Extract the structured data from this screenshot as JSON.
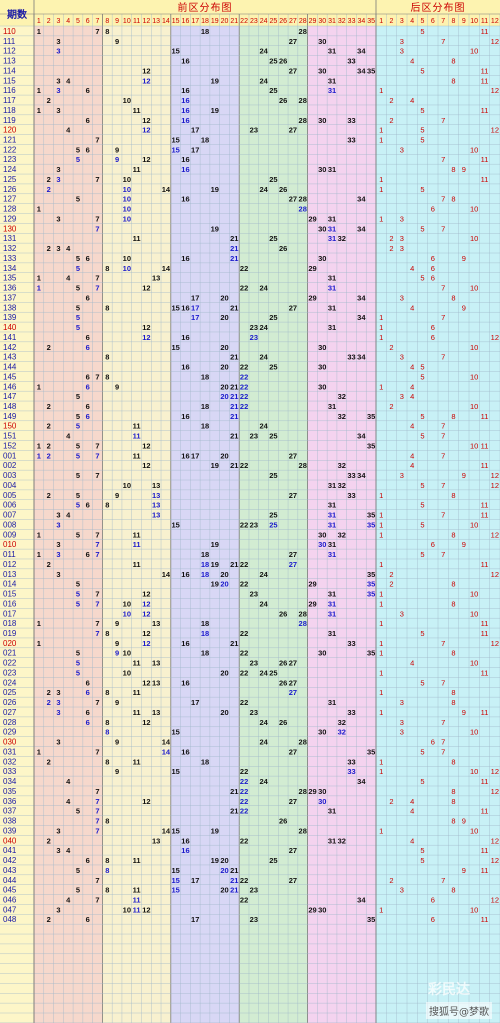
{
  "chart_data": {
    "type": "table",
    "header_label": "期数",
    "sections": [
      {
        "title": "前区分布图",
        "from": 1,
        "to": 35
      },
      {
        "title": "后区分布图",
        "from": 1,
        "to": 12
      }
    ],
    "front_groups": [
      {
        "from": 1,
        "to": 7,
        "color": "#f6d8cc"
      },
      {
        "from": 8,
        "to": 14,
        "color": "#f8f1cf"
      },
      {
        "from": 15,
        "to": 21,
        "color": "#d8d7f5"
      },
      {
        "from": 22,
        "to": 28,
        "color": "#d2ecd2"
      },
      {
        "from": 29,
        "to": 35,
        "color": "#f4d3ef"
      }
    ],
    "back_color": "#c8f1f6",
    "issue_odd_color": "#cc0000",
    "issue_even_color": "#1a1aa6",
    "repeat_color": "#1a1acc",
    "number_color": "#111111",
    "back_number_color": "#cc0000",
    "rows": [
      {
        "issue": "110",
        "front": [
          1,
          7,
          8,
          18,
          28
        ],
        "back": [
          5,
          11
        ]
      },
      {
        "issue": "111",
        "front": [
          3,
          9,
          27,
          30
        ],
        "back": [
          3,
          7,
          12
        ]
      },
      {
        "issue": "112",
        "front": [
          3,
          15,
          24,
          31,
          34
        ],
        "back": [
          3,
          10
        ]
      },
      {
        "issue": "113",
        "front": [
          16,
          25,
          26,
          33
        ],
        "back": [
          4,
          8
        ]
      },
      {
        "issue": "114",
        "front": [
          12,
          27,
          30,
          34,
          35
        ],
        "back": [
          5,
          11
        ]
      },
      {
        "issue": "115",
        "front": [
          3,
          4,
          12,
          19,
          24,
          31
        ],
        "back": [
          8,
          11
        ]
      },
      {
        "issue": "116",
        "front": [
          1,
          3,
          6,
          16,
          25,
          31
        ],
        "back": [
          1,
          12
        ]
      },
      {
        "issue": "117",
        "front": [
          2,
          10,
          16,
          26,
          28
        ],
        "back": [
          2,
          4
        ]
      },
      {
        "issue": "118",
        "front": [
          1,
          3,
          11,
          16,
          19
        ],
        "back": [
          5,
          11
        ]
      },
      {
        "issue": "119",
        "front": [
          6,
          12,
          16,
          28,
          30,
          33
        ],
        "back": [
          2,
          7
        ]
      },
      {
        "issue": "120",
        "front": [
          4,
          12,
          17,
          23,
          27
        ],
        "back": [
          1,
          5,
          12
        ]
      },
      {
        "issue": "121",
        "front": [
          7,
          15,
          18,
          33
        ],
        "back": [
          1,
          5
        ]
      },
      {
        "issue": "122",
        "front": [
          5,
          6,
          9,
          15,
          17
        ],
        "back": [
          3,
          10
        ]
      },
      {
        "issue": "123",
        "front": [
          5,
          9,
          12,
          16
        ],
        "back": [
          7,
          11
        ]
      },
      {
        "issue": "124",
        "front": [
          3,
          11,
          16,
          30,
          31
        ],
        "back": [
          8,
          9
        ]
      },
      {
        "issue": "125",
        "front": [
          2,
          3,
          7,
          10,
          25
        ],
        "back": [
          1,
          11
        ]
      },
      {
        "issue": "126",
        "front": [
          2,
          10,
          14,
          19,
          24,
          26
        ],
        "back": [
          1,
          5
        ]
      },
      {
        "issue": "127",
        "front": [
          5,
          10,
          16,
          27,
          28,
          34
        ],
        "back": [
          7,
          8
        ]
      },
      {
        "issue": "128",
        "front": [
          1,
          10,
          28
        ],
        "back": [
          6,
          10
        ]
      },
      {
        "issue": "129",
        "front": [
          3,
          7,
          10,
          29,
          31
        ],
        "back": [
          1,
          3
        ]
      },
      {
        "issue": "130",
        "front": [
          7,
          19,
          30,
          31,
          34
        ],
        "back": [
          5,
          7
        ]
      },
      {
        "issue": "131",
        "front": [
          11,
          21,
          25,
          31,
          32
        ],
        "back": [
          2,
          3,
          10
        ]
      },
      {
        "issue": "132",
        "front": [
          2,
          3,
          4,
          21,
          26
        ],
        "back": [
          2,
          3
        ]
      },
      {
        "issue": "133",
        "front": [
          5,
          6,
          10,
          16,
          21,
          30
        ],
        "back": [
          6,
          9
        ]
      },
      {
        "issue": "134",
        "front": [
          5,
          8,
          10,
          14,
          22,
          29
        ],
        "back": [
          4,
          6
        ]
      },
      {
        "issue": "135",
        "front": [
          1,
          4,
          7,
          13,
          31
        ],
        "back": [
          5,
          6
        ]
      },
      {
        "issue": "136",
        "front": [
          1,
          5,
          7,
          12,
          22,
          24,
          31
        ],
        "back": [
          7,
          10
        ]
      },
      {
        "issue": "137",
        "front": [
          6,
          17,
          20,
          29,
          34
        ],
        "back": [
          3,
          8
        ]
      },
      {
        "issue": "138",
        "front": [
          5,
          8,
          15,
          16,
          17,
          21,
          27,
          31
        ],
        "back": [
          4,
          9
        ]
      },
      {
        "issue": "139",
        "front": [
          5,
          17,
          20,
          25,
          34
        ],
        "back": [
          1,
          7
        ]
      },
      {
        "issue": "140",
        "front": [
          5,
          12,
          23,
          24,
          31
        ],
        "back": [
          1,
          6
        ]
      },
      {
        "issue": "141",
        "front": [
          6,
          12,
          16,
          23
        ],
        "back": [
          1,
          6,
          12
        ]
      },
      {
        "issue": "142",
        "front": [
          2,
          6,
          15,
          20,
          30
        ],
        "back": [
          2,
          10
        ]
      },
      {
        "issue": "143",
        "front": [
          8,
          21,
          24,
          33,
          34
        ],
        "back": [
          3,
          7
        ]
      },
      {
        "issue": "144",
        "front": [
          16,
          20,
          22,
          25,
          30
        ],
        "back": [
          4,
          5
        ]
      },
      {
        "issue": "145",
        "front": [
          6,
          7,
          8,
          18,
          22
        ],
        "back": [
          5,
          10
        ]
      },
      {
        "issue": "146",
        "front": [
          1,
          6,
          9,
          20,
          21,
          22,
          30
        ],
        "back": [
          1,
          4
        ]
      },
      {
        "issue": "147",
        "front": [
          5,
          20,
          21,
          22,
          32
        ],
        "back": [
          3,
          4
        ]
      },
      {
        "issue": "148",
        "front": [
          2,
          6,
          18,
          21,
          22,
          31
        ],
        "back": [
          2,
          10
        ]
      },
      {
        "issue": "149",
        "front": [
          5,
          6,
          16,
          21,
          32,
          35
        ],
        "back": [
          5,
          8,
          11
        ]
      },
      {
        "issue": "150",
        "front": [
          2,
          5,
          11,
          18,
          24
        ],
        "back": [
          4,
          7
        ]
      },
      {
        "issue": "151",
        "front": [
          4,
          11,
          21,
          23,
          25,
          34
        ],
        "back": [
          5,
          7
        ]
      },
      {
        "issue": "152",
        "front": [
          1,
          2,
          5,
          7,
          12,
          35
        ],
        "back": [
          10,
          11
        ]
      },
      {
        "issue": "001",
        "front": [
          1,
          2,
          5,
          7,
          11,
          16,
          17,
          20,
          27
        ],
        "back": [
          4,
          7
        ]
      },
      {
        "issue": "002",
        "front": [
          12,
          19,
          21,
          22,
          28,
          32
        ],
        "back": [
          4,
          11
        ]
      },
      {
        "issue": "003",
        "front": [
          5,
          7,
          25,
          33,
          34
        ],
        "back": [
          3,
          9,
          12
        ]
      },
      {
        "issue": "004",
        "front": [
          10,
          13,
          31,
          32
        ],
        "back": [
          5,
          7,
          12
        ]
      },
      {
        "issue": "005",
        "front": [
          2,
          5,
          9,
          13,
          27,
          33
        ],
        "back": [
          1,
          8
        ]
      },
      {
        "issue": "006",
        "front": [
          5,
          6,
          8,
          13,
          31
        ],
        "back": [
          5,
          11
        ]
      },
      {
        "issue": "007",
        "front": [
          3,
          4,
          13,
          25,
          31,
          35
        ],
        "back": [
          1,
          7,
          11
        ]
      },
      {
        "issue": "008",
        "front": [
          3,
          15,
          22,
          23,
          25,
          31,
          35
        ],
        "back": [
          1,
          5,
          10
        ]
      },
      {
        "issue": "009",
        "front": [
          1,
          5,
          7,
          11,
          30,
          32
        ],
        "back": [
          1,
          8,
          12
        ]
      },
      {
        "issue": "010",
        "front": [
          3,
          7,
          11,
          19,
          30,
          31
        ],
        "back": [
          6,
          9
        ]
      },
      {
        "issue": "011",
        "front": [
          1,
          3,
          6,
          7,
          18,
          27,
          31
        ],
        "back": [
          5,
          7
        ]
      },
      {
        "issue": "012",
        "front": [
          2,
          11,
          18,
          19,
          21,
          22,
          27
        ],
        "back": [
          1,
          11
        ]
      },
      {
        "issue": "013",
        "front": [
          3,
          14,
          16,
          18,
          20,
          24,
          35
        ],
        "back": [
          2,
          12
        ]
      },
      {
        "issue": "014",
        "front": [
          5,
          19,
          20,
          22,
          29,
          35
        ],
        "back": [
          2,
          8
        ]
      },
      {
        "issue": "015",
        "front": [
          5,
          7,
          12,
          23,
          31,
          35
        ],
        "back": [
          1,
          10
        ]
      },
      {
        "issue": "016",
        "front": [
          5,
          7,
          10,
          12,
          24,
          29,
          31
        ],
        "back": [
          1,
          8
        ]
      },
      {
        "issue": "017",
        "front": [
          10,
          12,
          26,
          28,
          31
        ],
        "back": [
          3,
          10
        ]
      },
      {
        "issue": "018",
        "front": [
          1,
          7,
          9,
          13,
          18,
          28
        ],
        "back": [
          1,
          11
        ]
      },
      {
        "issue": "019",
        "front": [
          7,
          8,
          12,
          18,
          22,
          31
        ],
        "back": [
          5,
          11
        ]
      },
      {
        "issue": "020",
        "front": [
          1,
          9,
          12,
          16,
          21,
          33
        ],
        "back": [
          1,
          7,
          12
        ]
      },
      {
        "issue": "021",
        "front": [
          5,
          9,
          10,
          18,
          22,
          30,
          35
        ],
        "back": [
          1,
          8
        ]
      },
      {
        "issue": "022",
        "front": [
          5,
          11,
          13,
          23,
          26,
          27
        ],
        "back": [
          4,
          10
        ]
      },
      {
        "issue": "023",
        "front": [
          5,
          10,
          20,
          22,
          24,
          25
        ],
        "back": [
          1,
          11
        ]
      },
      {
        "issue": "024",
        "front": [
          6,
          12,
          13,
          16,
          26,
          27
        ],
        "back": [
          5,
          7
        ]
      },
      {
        "issue": "025",
        "front": [
          2,
          3,
          6,
          8,
          11,
          27
        ],
        "back": [
          1,
          8
        ]
      },
      {
        "issue": "026",
        "front": [
          2,
          3,
          7,
          9,
          17,
          22,
          31
        ],
        "back": [
          3,
          8
        ]
      },
      {
        "issue": "027",
        "front": [
          3,
          6,
          11,
          13,
          20,
          23,
          33
        ],
        "back": [
          1,
          9,
          11
        ]
      },
      {
        "issue": "028",
        "front": [
          6,
          8,
          12,
          24,
          26,
          32
        ],
        "back": [
          3,
          7
        ]
      },
      {
        "issue": "029",
        "front": [
          8,
          15,
          30,
          32
        ],
        "back": [
          3,
          10
        ]
      },
      {
        "issue": "030",
        "front": [
          3,
          9,
          14,
          24,
          28
        ],
        "back": [
          6,
          7
        ]
      },
      {
        "issue": "031",
        "front": [
          1,
          7,
          14,
          16,
          27,
          35
        ],
        "back": [
          5,
          7
        ]
      },
      {
        "issue": "032",
        "front": [
          2,
          8,
          11,
          18,
          33
        ],
        "back": [
          1,
          8
        ]
      },
      {
        "issue": "033",
        "front": [
          9,
          15,
          22,
          33
        ],
        "back": [
          1,
          10,
          12
        ]
      },
      {
        "issue": "034",
        "front": [
          4,
          22,
          24,
          34
        ],
        "back": [
          5,
          11
        ]
      },
      {
        "issue": "035",
        "front": [
          7,
          21,
          22,
          28,
          29,
          30
        ],
        "back": [
          8,
          12
        ]
      },
      {
        "issue": "036",
        "front": [
          4,
          7,
          12,
          22,
          27,
          30
        ],
        "back": [
          2,
          4,
          8
        ]
      },
      {
        "issue": "037",
        "front": [
          5,
          7,
          21,
          22,
          31
        ],
        "back": [
          4,
          11
        ]
      },
      {
        "issue": "038",
        "front": [
          7,
          8,
          26
        ],
        "back": [
          8,
          9
        ]
      },
      {
        "issue": "039",
        "front": [
          3,
          7,
          14,
          15,
          19,
          28
        ],
        "back": [
          1,
          10
        ]
      },
      {
        "issue": "040",
        "front": [
          2,
          13,
          16,
          22,
          31,
          32
        ],
        "back": [
          4,
          12
        ]
      },
      {
        "issue": "041",
        "front": [
          3,
          4,
          16,
          27
        ],
        "back": [
          5,
          11
        ]
      },
      {
        "issue": "042",
        "front": [
          6,
          8,
          11,
          19,
          20,
          25
        ],
        "back": [
          5,
          12
        ]
      },
      {
        "issue": "043",
        "front": [
          5,
          8,
          15,
          20,
          21
        ],
        "back": [
          9,
          11
        ]
      },
      {
        "issue": "044",
        "front": [
          7,
          15,
          17,
          21,
          22,
          27
        ],
        "back": [
          2,
          7
        ]
      },
      {
        "issue": "045",
        "front": [
          5,
          8,
          11,
          15,
          20,
          21,
          23
        ],
        "back": [
          3,
          8
        ]
      },
      {
        "issue": "046",
        "front": [
          4,
          7,
          11,
          22,
          34
        ],
        "back": [
          6,
          12
        ]
      },
      {
        "issue": "047",
        "front": [
          3,
          10,
          11,
          12,
          29,
          30
        ],
        "back": [
          1,
          10
        ]
      },
      {
        "issue": "048",
        "front": [
          2,
          6,
          17,
          23,
          35
        ],
        "back": [
          6,
          11
        ]
      }
    ]
  },
  "watermark": {
    "text": "搜狐号@梦歌",
    "logo_text": "彩民达"
  }
}
